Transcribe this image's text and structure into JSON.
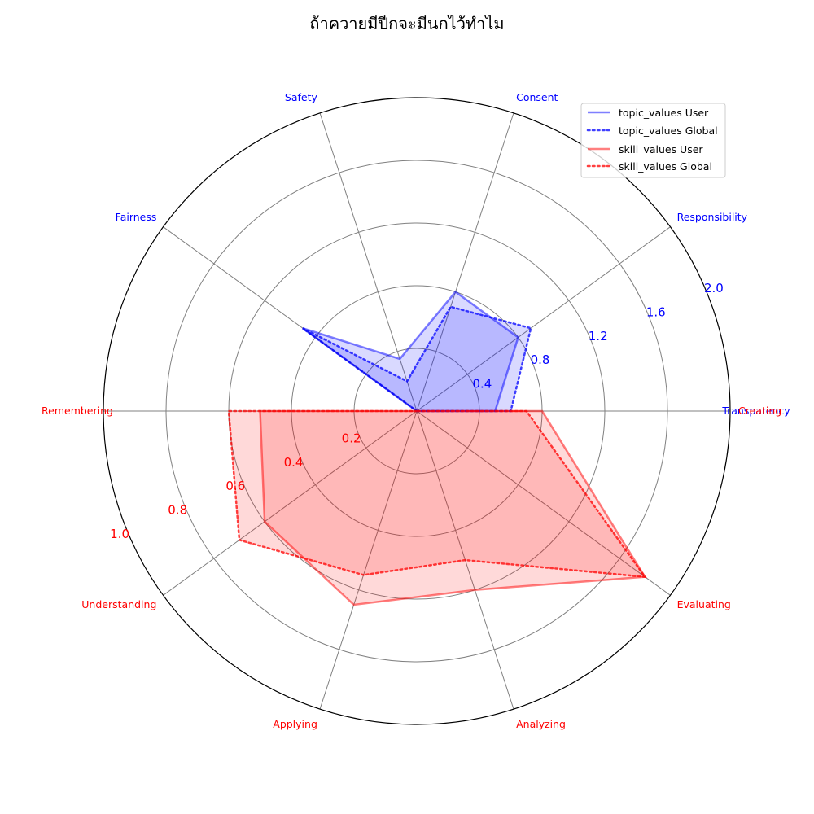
{
  "chart_data": {
    "type": "radar",
    "title": "ถ้าควายมีปีกจะมีนกไว้ทำไม",
    "colors": {
      "topic": "#0000ff",
      "skill": "#ff0000",
      "grid": "#808080",
      "outline": "#000000"
    },
    "topic_axis": {
      "categories": [
        "Transparency",
        "Responsibility",
        "Consent",
        "Safety",
        "Fairness"
      ],
      "range": [
        0,
        2.0
      ],
      "ticks": [
        "0.4",
        "0.8",
        "1.2",
        "1.6",
        "2.0"
      ]
    },
    "skill_axis": {
      "categories": [
        "Remembering",
        "Understanding",
        "Applying",
        "Analyzing",
        "Evaluating",
        "Creating"
      ],
      "range": [
        0,
        1.0
      ],
      "ticks": [
        "0.2",
        "0.4",
        "0.6",
        "0.8",
        "1.0"
      ]
    },
    "series": [
      {
        "name": "topic_values User",
        "group": "topic",
        "style": "solid",
        "values": [
          0.5,
          0.8,
          0.8,
          0.35,
          0.9
        ]
      },
      {
        "name": "topic_values Global",
        "group": "topic",
        "style": "dotted",
        "values": [
          0.6,
          0.9,
          0.7,
          0.2,
          0.9
        ]
      },
      {
        "name": "skill_values User",
        "group": "skill",
        "style": "solid",
        "values": [
          0.5,
          0.6,
          0.65,
          0.6,
          0.9,
          0.4
        ]
      },
      {
        "name": "skill_values Global",
        "group": "skill",
        "style": "dotted",
        "values": [
          0.6,
          0.7,
          0.55,
          0.5,
          0.9,
          0.35
        ]
      }
    ],
    "legend_position": "top-right"
  }
}
